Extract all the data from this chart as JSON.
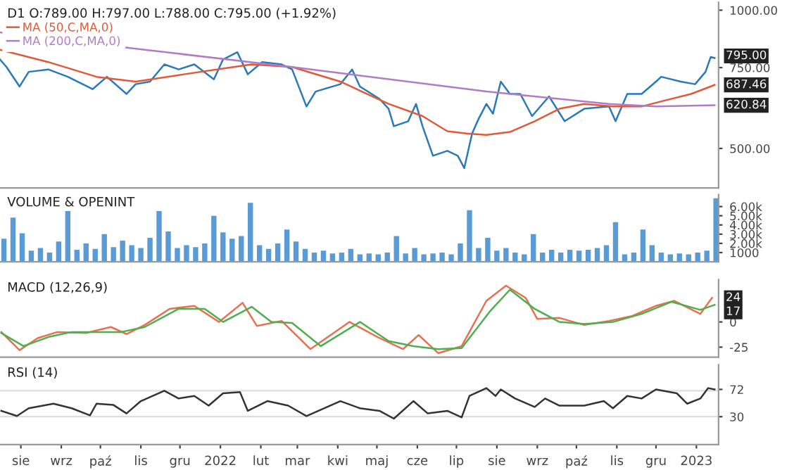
{
  "chart_data": [
    {
      "type": "line",
      "title": "D1 O:789.00 H:797.00 L:788.00 C:795.00 (+1.92%)",
      "log": "y",
      "legend": "top left",
      "tick_labels": "y",
      "xlim": [
        "2021-07-16",
        "2023-01-18"
      ],
      "ylim": [
        410,
        1040
      ],
      "yticks": [
        {
          "value": 500,
          "label": "500.00"
        },
        {
          "value": 750,
          "label": "750.00"
        },
        {
          "value": 1000,
          "label": "1000.00"
        }
      ],
      "series": [
        {
          "color": "#2a7ab8",
          "x": [
            "2021-07-16",
            "2021-07-21",
            "2021-07-31",
            "2021-08-07",
            "2021-08-22",
            "2021-09-06",
            "2021-09-25",
            "2021-10-06",
            "2021-10-21",
            "2021-10-28",
            "2021-11-08",
            "2021-11-19",
            "2021-11-30",
            "2021-12-12",
            "2021-12-27",
            "2022-01-03",
            "2022-01-14",
            "2022-01-22",
            "2022-02-02",
            "2022-02-17",
            "2022-02-25",
            "2022-03-08",
            "2022-03-15",
            "2022-04-03",
            "2022-04-12",
            "2022-04-18",
            "2022-05-03",
            "2022-05-10",
            "2022-05-14",
            "2022-05-25",
            "2022-05-31",
            "2022-06-05",
            "2022-06-13",
            "2022-06-24",
            "2022-07-02",
            "2022-07-07",
            "2022-07-13",
            "2022-07-18",
            "2022-07-24",
            "2022-07-29",
            "2022-08-04",
            "2022-08-11",
            "2022-08-19",
            "2022-08-28",
            "2022-09-10",
            "2022-09-22",
            "2022-10-07",
            "2022-10-26",
            "2022-10-31",
            "2022-11-09",
            "2022-11-20",
            "2022-12-01",
            "2022-12-05",
            "2022-12-20",
            "2022-12-31",
            "2023-01-08",
            "2023-01-12",
            "2023-01-15"
          ],
          "values": [
            781,
            752,
            682,
            734,
            743,
            716,
            673,
            716,
            657,
            690,
            699,
            762,
            743,
            762,
            707,
            781,
            810,
            725,
            771,
            762,
            743,
            617,
            665,
            690,
            743,
            682,
            641,
            610,
            559,
            573,
            625,
            559,
            482,
            494,
            482,
            453,
            539,
            580,
            625,
            595,
            699,
            657,
            657,
            588,
            649,
            573,
            610,
            617,
            573,
            657,
            657,
            699,
            716,
            699,
            690,
            734,
            791,
            787
          ]
        },
        {
          "name": "MA (50,C,MA,0)",
          "color": "#e05a3a",
          "x": [
            "2021-07-16",
            "2021-08-22",
            "2021-09-28",
            "2021-10-28",
            "2021-12-04",
            "2022-01-11",
            "2022-01-25",
            "2022-02-25",
            "2022-04-03",
            "2022-05-10",
            "2022-06-05",
            "2022-06-24",
            "2022-07-09",
            "2022-07-24",
            "2022-08-11",
            "2022-08-30",
            "2022-09-18",
            "2022-10-07",
            "2022-10-29",
            "2022-11-20",
            "2022-12-05",
            "2022-12-28",
            "2023-01-15"
          ],
          "values": [
            820,
            771,
            716,
            699,
            725,
            752,
            762,
            752,
            699,
            625,
            588,
            545,
            539,
            535,
            543,
            573,
            610,
            625,
            617,
            617,
            633,
            657,
            687.46
          ]
        },
        {
          "name": "MA (200,C,MA,0)",
          "color": "#b07cc6",
          "x": [
            "2021-07-16",
            "2021-11-04",
            "2022-02-25",
            "2022-07-24",
            "2022-10-26",
            "2022-12-01",
            "2023-01-15"
          ],
          "values": [
            895,
            820,
            752,
            665,
            625,
            617,
            620.84
          ]
        }
      ],
      "annotations": [
        {
          "text": "795.00",
          "x": "2023-01-15",
          "y": 795
        },
        {
          "text": "687.46",
          "x": "2023-01-15",
          "y": 687.46
        },
        {
          "text": "620.84",
          "x": "2023-01-15",
          "y": 620.84
        }
      ]
    },
    {
      "type": "bar",
      "title": "VOLUME & OPENINT",
      "tick_labels": "y",
      "xlim": [
        "2021-07-16",
        "2023-01-18"
      ],
      "ylim": [
        0,
        7300
      ],
      "yticks": [
        1000,
        {
          "value": 2000,
          "label": "2.00k"
        },
        {
          "value": 3000,
          "label": "3.00k"
        },
        {
          "value": 4000,
          "label": "4.00k"
        },
        {
          "value": 5000,
          "label": "5.00k"
        },
        {
          "value": 6000,
          "label": "6.00k"
        }
      ],
      "series": [
        {
          "color": "#5b9bd5",
          "x": [
            "2021-07-19",
            "2021-07-26",
            "2021-08-02",
            "2021-08-09",
            "2021-08-16",
            "2021-08-23",
            "2021-08-30",
            "2021-09-06",
            "2021-09-13",
            "2021-09-20",
            "2021-09-27",
            "2021-10-04",
            "2021-10-11",
            "2021-10-18",
            "2021-10-25",
            "2021-11-01",
            "2021-11-08",
            "2021-11-15",
            "2021-11-22",
            "2021-11-29",
            "2021-12-06",
            "2021-12-13",
            "2021-12-20",
            "2021-12-27",
            "2022-01-03",
            "2022-01-10",
            "2022-01-17",
            "2022-01-24",
            "2022-01-31",
            "2022-02-07",
            "2022-02-14",
            "2022-02-21",
            "2022-02-28",
            "2022-03-07",
            "2022-03-14",
            "2022-03-21",
            "2022-03-28",
            "2022-04-04",
            "2022-04-11",
            "2022-04-18",
            "2022-04-25",
            "2022-05-02",
            "2022-05-09",
            "2022-05-16",
            "2022-05-23",
            "2022-05-30",
            "2022-06-06",
            "2022-06-13",
            "2022-06-20",
            "2022-06-27",
            "2022-07-04",
            "2022-07-11",
            "2022-07-18",
            "2022-07-25",
            "2022-08-01",
            "2022-08-08",
            "2022-08-15",
            "2022-08-22",
            "2022-08-29",
            "2022-09-05",
            "2022-09-12",
            "2022-09-19",
            "2022-09-26",
            "2022-10-03",
            "2022-10-10",
            "2022-10-17",
            "2022-10-24",
            "2022-10-31",
            "2022-11-07",
            "2022-11-14",
            "2022-11-21",
            "2022-11-28",
            "2022-12-05",
            "2022-12-12",
            "2022-12-19",
            "2022-12-26",
            "2023-01-02",
            "2023-01-09",
            "2023-01-16"
          ],
          "values": [
            2500,
            4800,
            3100,
            1200,
            1500,
            1000,
            2200,
            5500,
            1300,
            2000,
            1400,
            3000,
            1600,
            2300,
            1800,
            1500,
            2600,
            5500,
            3300,
            1500,
            1800,
            1600,
            2000,
            5000,
            3200,
            2500,
            2800,
            6400,
            1800,
            1400,
            2000,
            3500,
            2200,
            1400,
            1000,
            1200,
            900,
            1000,
            1400,
            800,
            900,
            800,
            1000,
            2800,
            900,
            1500,
            800,
            900,
            1000,
            800,
            2000,
            5600,
            1500,
            2600,
            1200,
            1500,
            1000,
            800,
            3000,
            1000,
            1300,
            1000,
            1300,
            1200,
            1300,
            1500,
            1800,
            4300,
            800,
            1000,
            3500,
            1800,
            1000,
            800,
            900,
            800,
            1000,
            1200,
            6900
          ]
        }
      ]
    },
    {
      "type": "line",
      "title": "MACD (12,26,9)",
      "tick_labels": "y",
      "xlim": [
        "2021-07-16",
        "2023-01-18"
      ],
      "ylim": [
        -35,
        42
      ],
      "yticks": [
        -25,
        0
      ],
      "series": [
        {
          "color": "#e8704f",
          "x": [
            "2021-07-17",
            "2021-07-31",
            "2021-08-14",
            "2021-08-29",
            "2021-09-20",
            "2021-10-09",
            "2021-10-21",
            "2021-11-04",
            "2021-11-23",
            "2021-12-12",
            "2021-12-31",
            "2022-01-18",
            "2022-01-29",
            "2022-02-17",
            "2022-03-11",
            "2022-04-10",
            "2022-05-03",
            "2022-05-21",
            "2022-06-02",
            "2022-06-17",
            "2022-07-05",
            "2022-07-24",
            "2022-08-08",
            "2022-08-23",
            "2022-09-01",
            "2022-09-18",
            "2022-10-07",
            "2022-10-26",
            "2022-11-13",
            "2022-12-01",
            "2022-12-15",
            "2023-01-04",
            "2023-01-13"
          ],
          "values": [
            -10,
            -28,
            -16,
            -10,
            -11,
            -5,
            -12,
            -3,
            13,
            16,
            0,
            19,
            -4,
            1,
            -27,
            0,
            -16,
            -27,
            -13,
            -31,
            -24,
            21,
            36,
            24,
            3,
            4,
            -3,
            1,
            6,
            16,
            21,
            8,
            24
          ]
        },
        {
          "color": "#4caf50",
          "x": [
            "2021-07-17",
            "2021-08-03",
            "2021-08-22",
            "2021-09-09",
            "2021-09-28",
            "2021-10-17",
            "2021-11-04",
            "2021-11-30",
            "2021-12-20",
            "2022-01-03",
            "2022-01-25",
            "2022-02-09",
            "2022-02-25",
            "2022-03-19",
            "2022-04-18",
            "2022-05-10",
            "2022-05-29",
            "2022-06-17",
            "2022-07-05",
            "2022-07-27",
            "2022-08-11",
            "2022-08-30",
            "2022-09-18",
            "2022-10-07",
            "2022-10-29",
            "2022-11-20",
            "2022-12-13",
            "2023-01-04",
            "2023-01-15"
          ],
          "values": [
            -11,
            -24,
            -15,
            -10,
            -10,
            -10,
            -5,
            13,
            13,
            0,
            15,
            0,
            -1,
            -24,
            0,
            -19,
            -24,
            -27,
            -26,
            11,
            32,
            13,
            0,
            -2,
            0,
            8,
            20,
            12,
            17
          ]
        }
      ],
      "annotations": [
        {
          "text": "24",
          "x": "2023-01-13",
          "y": 24
        },
        {
          "text": "17",
          "x": "2023-01-15",
          "y": 17
        }
      ]
    },
    {
      "type": "line",
      "title": "RSI (14)",
      "xlim": [
        "2021-07-16",
        "2023-01-18"
      ],
      "ylim": [
        -13,
        110
      ],
      "yticks": [
        30,
        72
      ],
      "xticks": [
        {
          "value": "2021-08-01",
          "label": "sie"
        },
        {
          "value": "2021-09-01",
          "label": "wrz"
        },
        {
          "value": "2021-10-01",
          "label": "paź"
        },
        {
          "value": "2021-11-01",
          "label": "lis"
        },
        {
          "value": "2021-12-01",
          "label": "gru"
        },
        {
          "value": "2022-01-01",
          "label": "2022"
        },
        {
          "value": "2022-02-01",
          "label": "lut"
        },
        {
          "value": "2022-03-01",
          "label": "mar"
        },
        {
          "value": "2022-04-01",
          "label": "kwi"
        },
        {
          "value": "2022-05-01",
          "label": "maj"
        },
        {
          "value": "2022-06-01",
          "label": "cze"
        },
        {
          "value": "2022-07-01",
          "label": "lip"
        },
        {
          "value": "2022-08-01",
          "label": "sie"
        },
        {
          "value": "2022-09-01",
          "label": "wrz"
        },
        {
          "value": "2022-10-01",
          "label": "paź"
        },
        {
          "value": "2022-11-01",
          "label": "lis"
        },
        {
          "value": "2022-12-01",
          "label": "gru"
        },
        {
          "value": "2023-01-01",
          "label": "2023"
        }
      ],
      "ref_lines": [
        {
          "axis": "y",
          "value": 70,
          "color": "#dddddd"
        },
        {
          "axis": "y",
          "value": 30,
          "color": "#dddddd"
        }
      ],
      "series": [
        {
          "color": "#333333",
          "x": [
            "2021-07-17",
            "2021-07-29",
            "2021-08-07",
            "2021-08-26",
            "2021-09-09",
            "2021-09-23",
            "2021-09-28",
            "2021-10-11",
            "2021-10-21",
            "2021-11-01",
            "2021-11-19",
            "2021-11-30",
            "2021-12-12",
            "2021-12-23",
            "2022-01-03",
            "2022-01-16",
            "2022-01-22",
            "2022-02-06",
            "2022-02-22",
            "2022-03-08",
            "2022-04-03",
            "2022-04-18",
            "2022-05-03",
            "2022-05-14",
            "2022-05-29",
            "2022-06-09",
            "2022-06-24",
            "2022-07-05",
            "2022-07-11",
            "2022-07-24",
            "2022-07-31",
            "2022-08-04",
            "2022-08-15",
            "2022-08-30",
            "2022-09-07",
            "2022-09-18",
            "2022-10-07",
            "2022-10-22",
            "2022-10-29",
            "2022-11-09",
            "2022-11-20",
            "2022-12-01",
            "2022-12-17",
            "2022-12-25",
            "2023-01-04",
            "2023-01-10",
            "2023-01-15"
          ],
          "values": [
            39,
            31,
            43,
            50,
            43,
            32,
            50,
            48,
            35,
            54,
            70,
            58,
            62,
            47,
            66,
            68,
            39,
            54,
            47,
            31,
            54,
            43,
            39,
            27,
            54,
            35,
            39,
            29,
            62,
            74,
            62,
            72,
            58,
            45,
            58,
            47,
            47,
            54,
            43,
            62,
            58,
            72,
            66,
            50,
            58,
            74,
            72
          ]
        }
      ]
    }
  ]
}
